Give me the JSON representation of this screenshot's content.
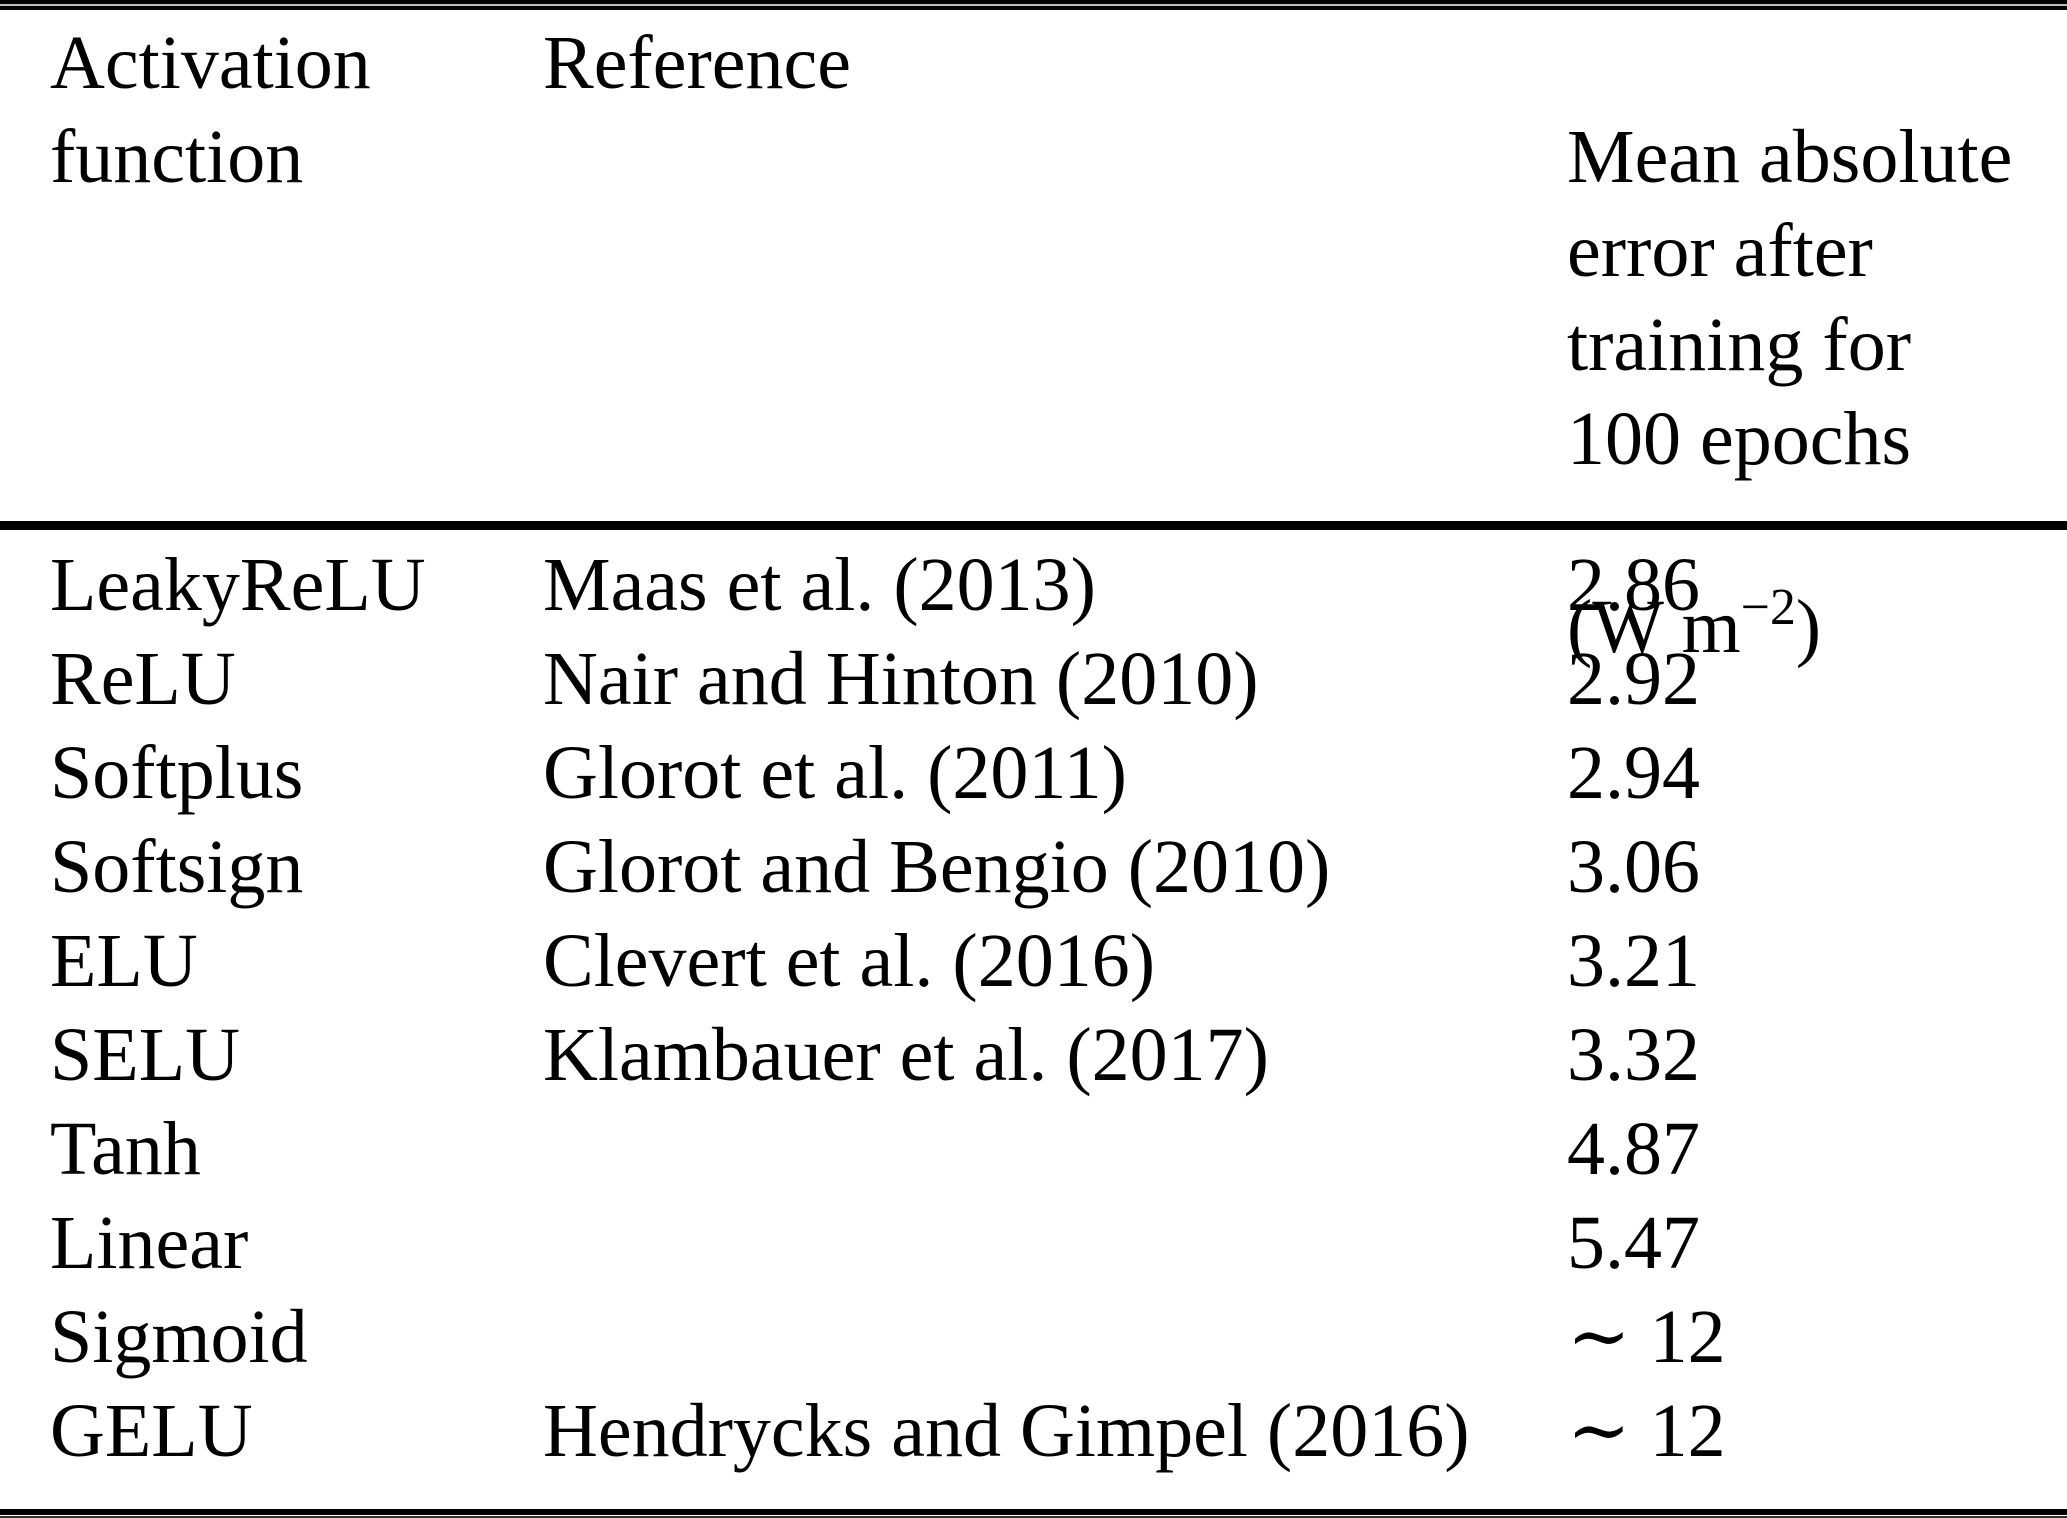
{
  "table": {
    "headers": {
      "col1": "Activation\nfunction",
      "col2": "Reference",
      "col3_lines": "Mean absolute\nerror after\ntraining for\n100 epochs",
      "col3_unit_prefix": "(W m",
      "col3_unit_sup": "−2",
      "col3_unit_suffix": ")"
    },
    "rows": [
      {
        "function": "LeakyReLU",
        "reference": "Maas et al. (2013)",
        "error": "2.86"
      },
      {
        "function": "ReLU",
        "reference": "Nair and Hinton (2010)",
        "error": "2.92"
      },
      {
        "function": "Softplus",
        "reference": "Glorot et al. (2011)",
        "error": "2.94"
      },
      {
        "function": "Softsign",
        "reference": "Glorot and Bengio (2010)",
        "error": "3.06"
      },
      {
        "function": "ELU",
        "reference": "Clevert et al. (2016)",
        "error": "3.21"
      },
      {
        "function": "SELU",
        "reference": "Klambauer et al. (2017)",
        "error": "3.32"
      },
      {
        "function": "Tanh",
        "reference": "",
        "error": "4.87"
      },
      {
        "function": "Linear",
        "reference": "",
        "error": "5.47"
      },
      {
        "function": "Sigmoid",
        "reference": "",
        "error": "∼ 12"
      },
      {
        "function": "GELU",
        "reference": "Hendrycks and Gimpel (2016)",
        "error": "∼ 12"
      }
    ],
    "colors": {
      "text": "#000000",
      "background": "#ffffff",
      "rule": "#000000"
    }
  }
}
